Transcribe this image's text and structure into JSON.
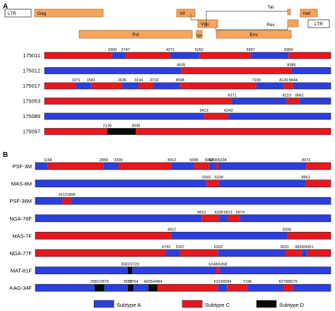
{
  "panel_a": {
    "label": "A",
    "genes": [
      {
        "id": "ltr5",
        "label": "LTR",
        "style": "white"
      },
      {
        "id": "gag",
        "label": "Gag",
        "style": "orange"
      },
      {
        "id": "vif",
        "label": "Vif",
        "style": "orange"
      },
      {
        "id": "tat",
        "label": "Tat",
        "style": "orange"
      },
      {
        "id": "nef",
        "label": "Nef",
        "style": "orange"
      },
      {
        "id": "ltr3",
        "label": "LTR",
        "style": "white"
      },
      {
        "id": "vpu",
        "label": "Vpu",
        "style": "orange"
      },
      {
        "id": "rev",
        "label": "Rev",
        "style": "orange"
      },
      {
        "id": "pol",
        "label": "Pol",
        "style": "orange"
      },
      {
        "id": "vpr",
        "label": "Vpr",
        "style": "orange"
      },
      {
        "id": "env",
        "label": "Env",
        "style": "orange"
      }
    ],
    "rows": [
      {
        "name": "175011",
        "bps": [
          2300,
          2747,
          4271,
          5252,
          6997,
          8284
        ],
        "segs": [
          "C",
          "A",
          "C",
          "A",
          "C",
          "A",
          "C"
        ]
      },
      {
        "name": "175012",
        "bps": [
          4635,
          8385
        ],
        "segs": [
          "A",
          "C",
          "A"
        ]
      },
      {
        "name": "175017",
        "bps": [
          1071,
          1581,
          2636,
          3194,
          3719,
          4598,
          7193,
          8120,
          8444
        ],
        "segs": [
          "C",
          "A",
          "C",
          "A",
          "C",
          "A",
          "C",
          "A",
          "C",
          "A"
        ]
      },
      {
        "name": "175053",
        "bps": [
          6371,
          8223,
          8661
        ],
        "segs": [
          "C",
          "A",
          "C",
          "A"
        ]
      },
      {
        "name": "175089",
        "bps": [
          5413,
          6243
        ],
        "segs": [
          "A",
          "C",
          "A"
        ]
      },
      {
        "name": "175097",
        "bps": [
          2130,
          3098
        ],
        "segs": [
          "C",
          "D",
          "C"
        ]
      }
    ]
  },
  "panel_b": {
    "label": "B",
    "rows": [
      {
        "name": "PSF-3M",
        "bps": [
          1168,
          2859,
          3300,
          4912,
          5586,
          6042,
          6258,
          6334,
          8973
        ],
        "labels": [
          "1168",
          "2859",
          "3300",
          "4912",
          "5586",
          "6042",
          "6258/6334",
          "",
          "8973"
        ],
        "segs": [
          "A",
          "C",
          "A",
          "C",
          "A",
          "C",
          "A",
          "C",
          "A",
          "C"
        ]
      },
      {
        "name": "MAS-6M",
        "bps": [
          5965,
          6338,
          8963
        ],
        "labels": [
          "5965",
          "6338",
          "8963"
        ],
        "segs": [
          "A",
          "C",
          "A",
          "C"
        ]
      },
      {
        "name": "PSF-36M",
        "bps": [
          1612,
          1868
        ],
        "labels": [
          "1612",
          "1868"
        ],
        "segs": [
          "A",
          "C",
          "A"
        ]
      },
      {
        "name": "NGA-76F",
        "bps": [
          5813,
          6338,
          6621,
          6979
        ],
        "labels": [
          "5813",
          "6338",
          "6621",
          "6979"
        ],
        "segs": [
          "A",
          "C",
          "A",
          "C",
          "A"
        ]
      },
      {
        "name": "MAS-7F",
        "bps": [
          4912,
          8396
        ],
        "labels": [
          "4912",
          "8396"
        ],
        "segs": [
          "C",
          "A",
          "C"
        ]
      },
      {
        "name": "NGA-77F",
        "bps": [
          4743,
          5167,
          6320,
          8331,
          8839,
          9001
        ],
        "labels": [
          "4743",
          "5167",
          "6320",
          "8331",
          "8839/9001",
          ""
        ],
        "segs": [
          "C",
          "A",
          "C",
          "A",
          "C",
          "A",
          "C"
        ]
      },
      {
        "name": "MAT-81F",
        "bps": [
          3582,
          3720,
          6248,
          6368
        ],
        "labels": [
          "3582/3720",
          "",
          "6248/6368",
          ""
        ],
        "segs": [
          "A",
          "D",
          "A",
          "C",
          "A"
        ]
      },
      {
        "name": "KAG-34F",
        "bps": [
          2581,
          2879,
          3582,
          3764,
          4205,
          4484,
          6319,
          6584,
          7196,
          8278,
          8579
        ],
        "labels": [
          "2581/2879",
          "",
          "3582",
          "3764",
          "4205/4484",
          "",
          "6319",
          "6584",
          "7196",
          "8278/8579",
          ""
        ],
        "segs": [
          "A",
          "D",
          "A",
          "D",
          "A",
          "D",
          "C",
          "A",
          "C",
          "A",
          "C",
          "A"
        ]
      }
    ]
  },
  "legend": [
    {
      "key": "A",
      "label": "Subtype A"
    },
    {
      "key": "C",
      "label": "Subtype C"
    },
    {
      "key": "D",
      "label": "Subtype D"
    }
  ],
  "colors": {
    "A": "#2b3fe0",
    "C": "#e8171f",
    "D": "#0a0a0a",
    "gene": "#f4a45e",
    "gene_stroke": "#b87838"
  }
}
